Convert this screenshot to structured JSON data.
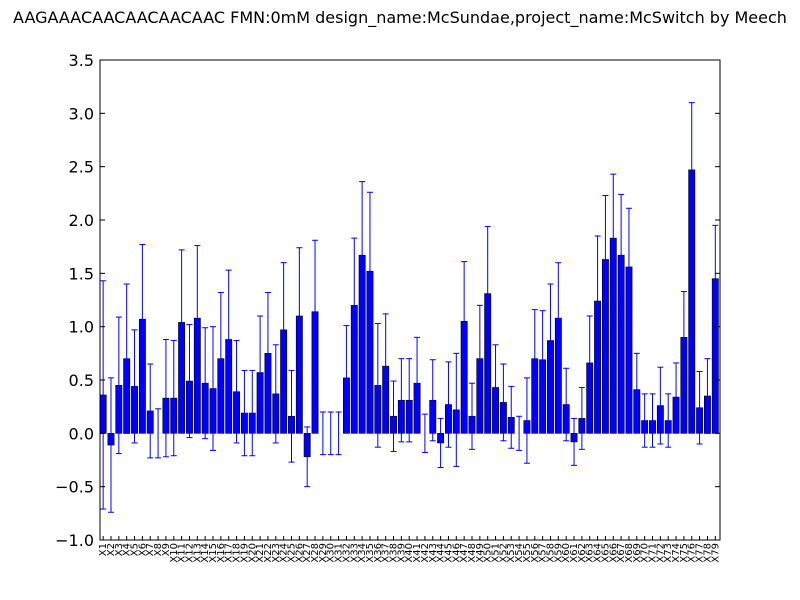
{
  "chart_data": {
    "type": "bar",
    "title": "AAGAAACAACAACAACAAC  FMN:0mM  design_name:McSundae,project_name:McSwitch by Meech",
    "xlabel": "",
    "ylabel": "",
    "ylim": [
      -1.0,
      3.5
    ],
    "yticks": [
      -1.0,
      -0.5,
      0.0,
      0.5,
      1.0,
      1.5,
      2.0,
      2.5,
      3.0,
      3.5
    ],
    "ytick_labels": [
      "−1.0",
      "−0.5",
      "0.0",
      "0.5",
      "1.0",
      "1.5",
      "2.0",
      "2.5",
      "3.0",
      "3.5"
    ],
    "grid": false,
    "bar_color": "#0000ff",
    "error_color": "#0000ff",
    "categories": [
      "X1",
      "X2",
      "X3",
      "X4",
      "X5",
      "X6",
      "X7",
      "X8",
      "X9",
      "X10",
      "X11",
      "X12",
      "X13",
      "X14",
      "X15",
      "X16",
      "X17",
      "X18",
      "X19",
      "X20",
      "X21",
      "X22",
      "X23",
      "X24",
      "X25",
      "X26",
      "X27",
      "X28",
      "X29",
      "X30",
      "X31",
      "X32",
      "X33",
      "X34",
      "X35",
      "X36",
      "X37",
      "X38",
      "X39",
      "X40",
      "X41",
      "X42",
      "X43",
      "X44",
      "X45",
      "X46",
      "X47",
      "X48",
      "X49",
      "X50",
      "X51",
      "X52",
      "X53",
      "X54",
      "X55",
      "X56",
      "X57",
      "X58",
      "X59",
      "X60",
      "X61",
      "X62",
      "X63",
      "X64",
      "X65",
      "X66",
      "X67",
      "X68",
      "X69",
      "X70",
      "X71",
      "X72",
      "X73",
      "X74",
      "X75",
      "X76",
      "X77",
      "X78",
      "X79"
    ],
    "values": [
      0.36,
      -0.11,
      0.45,
      0.7,
      0.44,
      1.07,
      0.21,
      0.0,
      0.33,
      0.33,
      1.04,
      0.49,
      1.08,
      0.47,
      0.42,
      0.7,
      0.88,
      0.39,
      0.19,
      0.19,
      0.57,
      0.75,
      0.37,
      0.97,
      0.16,
      1.1,
      -0.22,
      1.14,
      0.0,
      0.0,
      0.0,
      0.52,
      1.2,
      1.67,
      1.52,
      0.45,
      0.63,
      0.16,
      0.31,
      0.31,
      0.47,
      0.0,
      0.31,
      -0.09,
      0.27,
      0.22,
      1.05,
      0.16,
      0.7,
      1.31,
      0.43,
      0.29,
      0.15,
      0.0,
      0.12,
      0.7,
      0.69,
      0.87,
      1.08,
      0.27,
      -0.08,
      0.14,
      0.66,
      1.24,
      1.63,
      1.83,
      1.67,
      1.56,
      0.41,
      0.12,
      0.12,
      0.26,
      0.12,
      0.34,
      0.9,
      2.47,
      0.24,
      0.35,
      1.45
    ],
    "errors": [
      1.07,
      0.63,
      0.64,
      0.7,
      0.53,
      0.7,
      0.44,
      0.23,
      0.55,
      0.54,
      0.68,
      0.53,
      0.68,
      0.52,
      0.58,
      0.62,
      0.65,
      0.48,
      0.4,
      0.4,
      0.53,
      0.57,
      0.46,
      0.63,
      0.43,
      0.64,
      0.28,
      0.67,
      0.2,
      0.2,
      0.2,
      0.49,
      0.63,
      0.69,
      0.74,
      0.58,
      0.49,
      0.33,
      0.39,
      0.39,
      0.43,
      0.18,
      0.38,
      0.23,
      0.4,
      0.53,
      0.56,
      0.31,
      0.5,
      0.63,
      0.4,
      0.36,
      0.29,
      0.16,
      0.4,
      0.46,
      0.46,
      0.53,
      0.52,
      0.34,
      0.22,
      0.29,
      0.44,
      0.61,
      0.6,
      0.6,
      0.57,
      0.55,
      0.34,
      0.25,
      0.25,
      0.36,
      0.25,
      0.32,
      0.43,
      0.63,
      0.34,
      0.35,
      0.5
    ]
  }
}
